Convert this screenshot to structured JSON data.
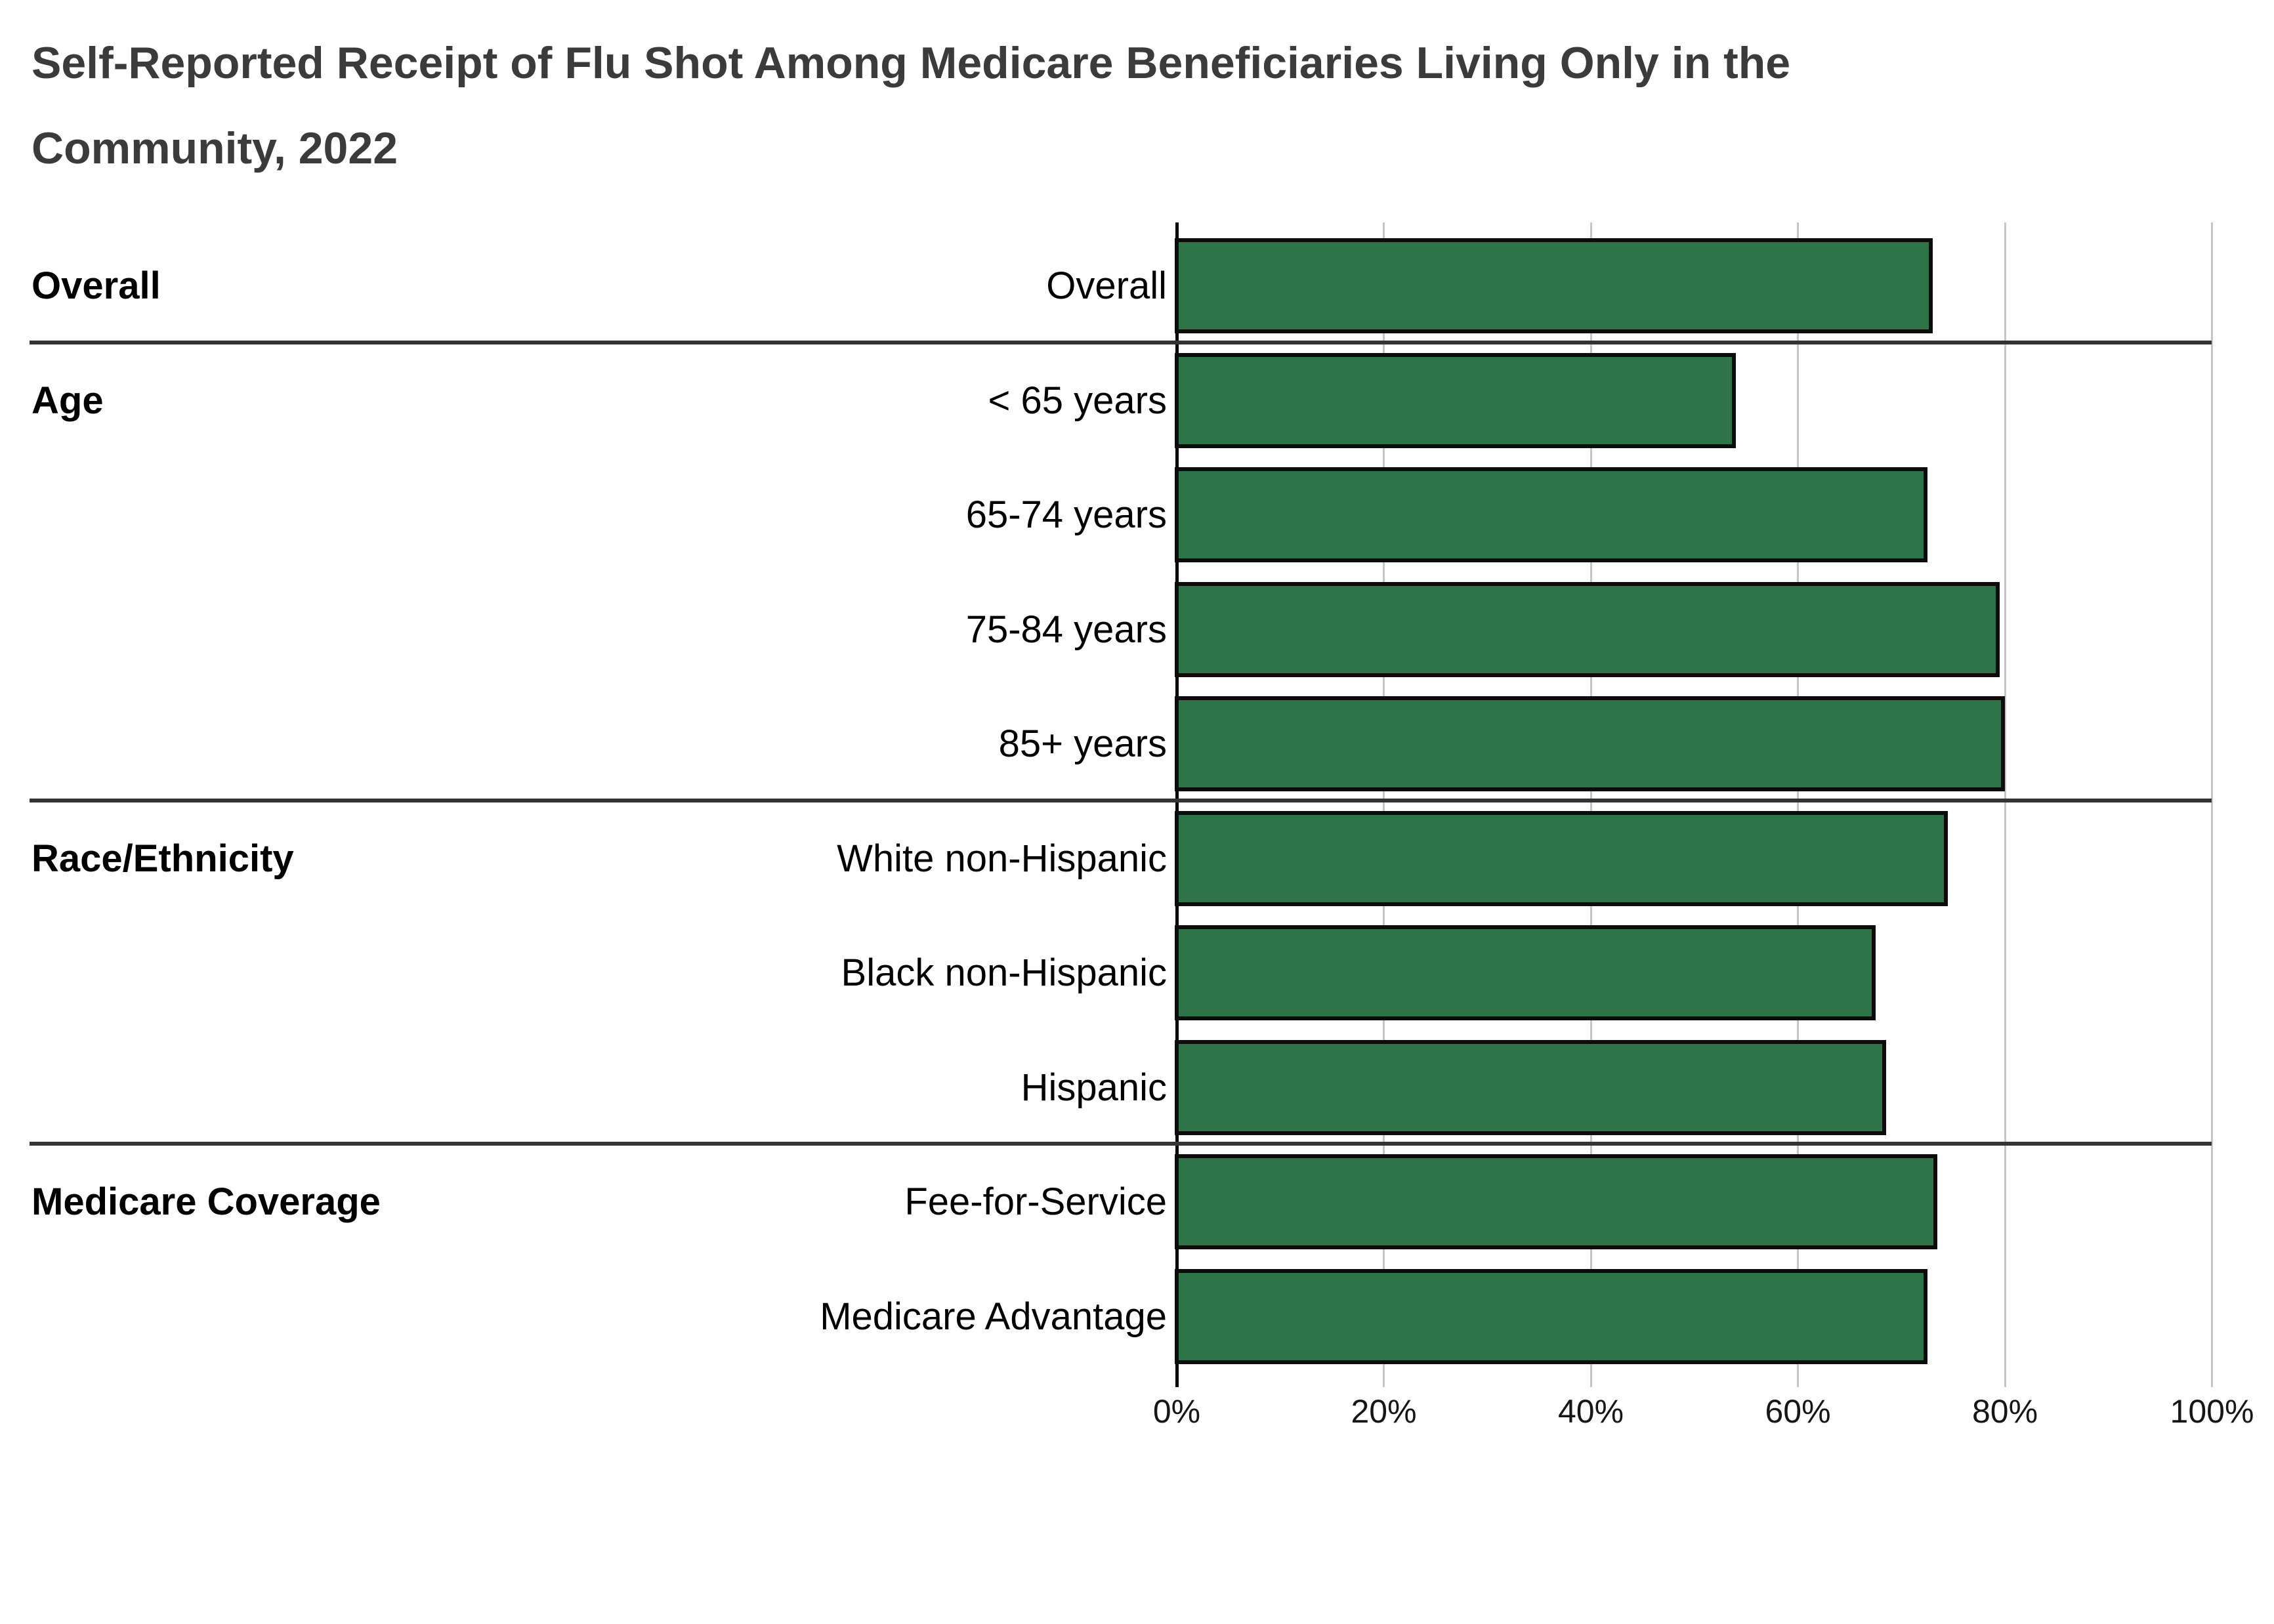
{
  "title": {
    "line1": "Self-Reported Receipt of Flu Shot Among Medicare Beneficiaries Living Only in the",
    "line2": "Community, 2022",
    "full": "Self-Reported Receipt of Flu Shot Among Medicare Beneficiaries Living Only in the Community, 2022"
  },
  "chart_data": {
    "type": "bar",
    "orientation": "horizontal",
    "title": "Self-Reported Receipt of Flu Shot Among Medicare Beneficiaries Living Only in the Community, 2022",
    "unit": "percent",
    "xlim": [
      0,
      100
    ],
    "x_ticks": [
      "0%",
      "20%",
      "40%",
      "60%",
      "80%",
      "100%"
    ],
    "x_tick_values": [
      0,
      20,
      40,
      60,
      80,
      100
    ],
    "grid": true,
    "legend": "none",
    "bar_color": "#2f7348",
    "bar_border_color": "#0c0c0c",
    "categories": [
      "Overall",
      "< 65 years",
      "65-74 years",
      "75-84 years",
      "85+ years",
      "White non-Hispanic",
      "Black non-Hispanic",
      "Hispanic",
      "Fee-for-Service",
      "Medicare Advantage"
    ],
    "values": [
      73,
      54,
      72.5,
      79.5,
      80,
      74.5,
      67.5,
      68.5,
      73.5,
      72.5
    ],
    "row_groups": [
      "Overall",
      "Age",
      "Age",
      "Age",
      "Age",
      "Race/Ethnicity",
      "Race/Ethnicity",
      "Race/Ethnicity",
      "Medicare Coverage",
      "Medicare Coverage"
    ],
    "groups": [
      {
        "label": "Overall",
        "rows": [
          {
            "label": "Overall",
            "value": 73
          }
        ]
      },
      {
        "label": "Age",
        "rows": [
          {
            "label": "< 65 years",
            "value": 54
          },
          {
            "label": "65-74 years",
            "value": 72.5
          },
          {
            "label": "75-84 years",
            "value": 79.5
          },
          {
            "label": "85+ years",
            "value": 80
          }
        ]
      },
      {
        "label": "Race/Ethnicity",
        "rows": [
          {
            "label": "White non-Hispanic",
            "value": 74.5
          },
          {
            "label": "Black non-Hispanic",
            "value": 67.5
          },
          {
            "label": "Hispanic",
            "value": 68.5
          }
        ]
      },
      {
        "label": "Medicare Coverage",
        "rows": [
          {
            "label": "Fee-for-Service",
            "value": 73.5
          },
          {
            "label": "Medicare Advantage",
            "value": 72.5
          }
        ]
      }
    ]
  }
}
